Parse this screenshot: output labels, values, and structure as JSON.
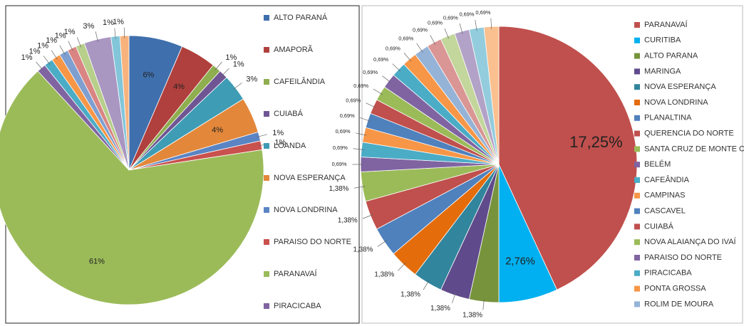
{
  "chart_data": [
    {
      "type": "pie",
      "categories": [
        "ALTO PARANÁ",
        "AMAPORÃ",
        "CAFEILÂNDIA",
        "CUIABÁ",
        "LOANDA",
        "NOVA ESPERANÇA",
        "NOVA LONDRINA",
        "PARAISO DO NORTE",
        "PARANAVAÍ",
        "PIRACICABA",
        null,
        null,
        null,
        null,
        null,
        null,
        null,
        null
      ],
      "values": [
        6,
        4,
        1,
        1,
        3,
        4,
        1,
        1,
        61,
        1,
        1,
        1,
        1,
        1,
        1,
        3,
        1,
        1
      ],
      "value_labels": [
        "6%",
        "4%",
        "1%",
        "1%",
        "3%",
        "4%",
        "1%",
        "1%",
        "61%",
        "1%",
        "1%",
        "1%",
        "1%",
        "1%",
        "1%",
        "3%",
        "1%",
        "1%"
      ],
      "colors": [
        "#3f6fad",
        "#b0403d",
        "#8eae4f",
        "#6f5593",
        "#3e9cb5",
        "#e3873a",
        "#5a84c4",
        "#c9514e",
        "#9bbb59",
        "#8064a2",
        "#4bacc6",
        "#f79646",
        "#7f9fd0",
        "#d98583",
        "#b7cf8a",
        "#a996c1",
        "#83c6da",
        "#f8b37d"
      ]
    },
    {
      "type": "pie",
      "categories": [
        "PARANAVAÍ",
        "CURITIBA",
        "ALTO PARANA",
        "MARINGA",
        "NOVA ESPERANÇA",
        "NOVA LONDRINA",
        "PLANALTINA",
        "QUERENCIA DO NORTE",
        "SANTA CRUZ DE MONTE CASTELO",
        "BELÉM",
        "CAFEÂNDIA",
        "CAMPINAS",
        "CASCAVEL",
        "CUIABÁ",
        "NOVA ALAIANÇA DO  IVAÍ",
        "PARAISO DO NORTE",
        "PIRACICABA",
        "PONTA GROSSA",
        "ROLIM DE MOURA",
        null,
        null,
        null,
        null,
        null
      ],
      "values": [
        17.25,
        2.76,
        1.38,
        1.38,
        1.38,
        1.38,
        1.38,
        1.38,
        1.38,
        0.69,
        0.69,
        0.69,
        0.69,
        0.69,
        0.69,
        0.69,
        0.69,
        0.69,
        0.69,
        0.69,
        0.69,
        0.69,
        0.69,
        0.69
      ],
      "value_labels": [
        "17,25%",
        "2,76%",
        "1,38%",
        "1,38%",
        "1,38%",
        "1,38%",
        "1,38%",
        "1,38%",
        "1,38%",
        "0,69%",
        "0,69%",
        "0,69%",
        "0,69%",
        "0,69%",
        "0,69%",
        "0,69%",
        "0,69%",
        "0,69%",
        "0,69%",
        "0,69%",
        "0,69%",
        "0,69%",
        "0,69%",
        "0,69%"
      ],
      "colors": [
        "#c0504d",
        "#00b0f0",
        "#77933c",
        "#5f4b8b",
        "#31859c",
        "#e46c0a",
        "#4f81bd",
        "#c0504d",
        "#9bbb59",
        "#8064a2",
        "#4bacc6",
        "#f79646",
        "#4f81bd",
        "#c0504d",
        "#9bbb59",
        "#8064a2",
        "#4bacc6",
        "#f79646",
        "#95b3d7",
        "#d99694",
        "#c3d69b",
        "#b3a2c7",
        "#93cddd",
        "#fac090"
      ]
    }
  ]
}
